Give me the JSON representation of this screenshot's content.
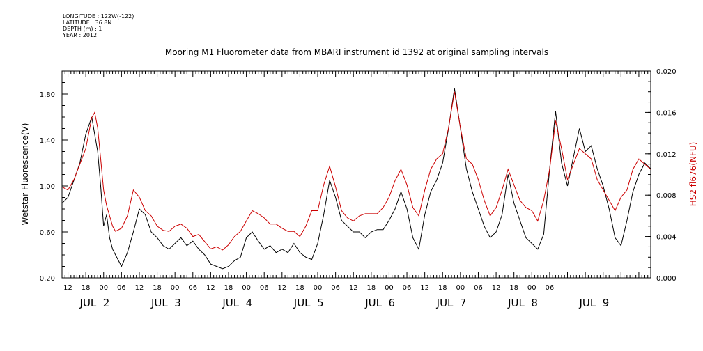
{
  "header": {
    "meta_lines": [
      "LONGITUDE : 122W(-122)",
      "LATITUDE : 36.8N",
      "DEPTH (m) : 1",
      "YEAR : 2012"
    ]
  },
  "chart_data": {
    "type": "line",
    "title": "Mooring M1 Fluorometer data from MBARI instrument id 1392 at original sampling intervals",
    "xlabel": "",
    "ylabel": "Wetstar Fluorescence(V)",
    "y2label": "HS2 fl676(NFU)",
    "xlim_hours": [
      -14,
      184
    ],
    "ylim": [
      0.2,
      2.0
    ],
    "y2lim": [
      0.0,
      0.02
    ],
    "yticks": [
      "0.20",
      "0.60",
      "1.00",
      "1.40",
      "1.80"
    ],
    "y2ticks": [
      "0.000",
      "0.004",
      "0.008",
      "0.012",
      "0.016",
      "0.020"
    ],
    "x_tick_labels": [
      "12",
      "18",
      "00",
      "06",
      "12",
      "18",
      "00",
      "06",
      "12",
      "18",
      "00",
      "06",
      "12",
      "18",
      "00",
      "06",
      "12",
      "18",
      "00",
      "06",
      "12",
      "18",
      "00",
      "06",
      "12",
      "18",
      "00",
      "06"
    ],
    "date_labels": [
      "JUL  2",
      "JUL  3",
      "JUL  4",
      "JUL  5",
      "JUL  6",
      "JUL  7",
      "JUL  8",
      "JUL  9"
    ],
    "grid": false,
    "series": [
      {
        "name": "Wetstar Fluorescence(V)",
        "axis": "left",
        "color": "#000000",
        "x": [
          -14,
          -12,
          -10,
          -8,
          -6,
          -4,
          -3,
          -2,
          -1,
          0,
          1,
          2,
          3,
          4,
          6,
          8,
          10,
          12,
          14,
          16,
          18,
          20,
          22,
          24,
          26,
          28,
          30,
          32,
          34,
          36,
          38,
          40,
          42,
          44,
          46,
          48,
          50,
          52,
          54,
          56,
          58,
          60,
          62,
          64,
          66,
          68,
          70,
          72,
          74,
          76,
          78,
          80,
          82,
          84,
          86,
          88,
          90,
          92,
          94,
          96,
          98,
          100,
          102,
          104,
          106,
          108,
          110,
          112,
          114,
          116,
          118,
          120,
          122,
          124,
          126,
          128,
          130,
          132,
          134,
          136,
          138,
          140,
          142,
          144,
          146,
          148,
          150,
          152,
          154,
          156,
          158,
          160,
          162,
          164,
          166,
          168,
          170,
          172,
          174,
          176,
          178,
          180,
          182,
          184
        ],
        "values": [
          0.85,
          0.9,
          1.05,
          1.2,
          1.45,
          1.6,
          1.45,
          1.3,
          1.0,
          0.65,
          0.75,
          0.55,
          0.45,
          0.4,
          0.3,
          0.42,
          0.6,
          0.8,
          0.75,
          0.6,
          0.55,
          0.48,
          0.45,
          0.5,
          0.55,
          0.48,
          0.52,
          0.45,
          0.4,
          0.32,
          0.3,
          0.28,
          0.3,
          0.35,
          0.38,
          0.55,
          0.6,
          0.52,
          0.45,
          0.48,
          0.42,
          0.45,
          0.42,
          0.5,
          0.42,
          0.38,
          0.36,
          0.5,
          0.75,
          1.05,
          0.9,
          0.7,
          0.65,
          0.6,
          0.6,
          0.55,
          0.6,
          0.62,
          0.62,
          0.7,
          0.8,
          0.95,
          0.8,
          0.55,
          0.45,
          0.75,
          0.95,
          1.05,
          1.2,
          1.5,
          1.85,
          1.5,
          1.15,
          0.95,
          0.8,
          0.65,
          0.55,
          0.6,
          0.75,
          1.1,
          0.85,
          0.7,
          0.55,
          0.5,
          0.45,
          0.58,
          1.15,
          1.65,
          1.2,
          1.0,
          1.25,
          1.5,
          1.3,
          1.35,
          1.15,
          1.0,
          0.8,
          0.55,
          0.48,
          0.7,
          0.95,
          1.1,
          1.2,
          1.15
        ]
      },
      {
        "name": "HS2 fl676(NFU)",
        "axis": "right",
        "color": "#cc0000",
        "x": [
          -14,
          -12,
          -10,
          -8,
          -6,
          -4,
          -3,
          -2,
          -1,
          0,
          1,
          2,
          3,
          4,
          6,
          8,
          10,
          12,
          14,
          16,
          18,
          20,
          22,
          24,
          26,
          28,
          30,
          32,
          34,
          36,
          38,
          40,
          42,
          44,
          46,
          48,
          50,
          52,
          54,
          56,
          58,
          60,
          62,
          64,
          66,
          68,
          70,
          72,
          74,
          76,
          78,
          80,
          82,
          84,
          86,
          88,
          90,
          92,
          94,
          96,
          98,
          100,
          102,
          104,
          106,
          108,
          110,
          112,
          114,
          116,
          118,
          120,
          122,
          124,
          126,
          128,
          130,
          132,
          134,
          136,
          138,
          140,
          142,
          144,
          146,
          148,
          150,
          152,
          154,
          156,
          158,
          160,
          162,
          164,
          166,
          168,
          170,
          172,
          174,
          176,
          178,
          180,
          182,
          184
        ],
        "values": [
          0.0088,
          0.0085,
          0.0095,
          0.011,
          0.0125,
          0.0155,
          0.016,
          0.0145,
          0.0115,
          0.0085,
          0.007,
          0.006,
          0.005,
          0.0045,
          0.0048,
          0.006,
          0.0085,
          0.0078,
          0.0065,
          0.006,
          0.005,
          0.0046,
          0.0045,
          0.005,
          0.0052,
          0.0048,
          0.004,
          0.0042,
          0.0035,
          0.0028,
          0.003,
          0.0027,
          0.0032,
          0.004,
          0.0045,
          0.0055,
          0.0065,
          0.0062,
          0.0058,
          0.0052,
          0.0052,
          0.0048,
          0.0045,
          0.0045,
          0.004,
          0.005,
          0.0065,
          0.0065,
          0.009,
          0.0108,
          0.0088,
          0.0065,
          0.0058,
          0.0055,
          0.006,
          0.0062,
          0.0062,
          0.0062,
          0.0068,
          0.0078,
          0.0094,
          0.0105,
          0.009,
          0.0068,
          0.006,
          0.0085,
          0.0105,
          0.0115,
          0.012,
          0.0145,
          0.018,
          0.0145,
          0.0115,
          0.011,
          0.0095,
          0.0075,
          0.006,
          0.0068,
          0.0085,
          0.0105,
          0.009,
          0.0075,
          0.0068,
          0.0065,
          0.0055,
          0.0075,
          0.0105,
          0.0152,
          0.0125,
          0.0095,
          0.011,
          0.0125,
          0.012,
          0.0115,
          0.0095,
          0.0085,
          0.0075,
          0.0065,
          0.0078,
          0.0085,
          0.0105,
          0.0115,
          0.011,
          0.0105
        ]
      }
    ]
  }
}
